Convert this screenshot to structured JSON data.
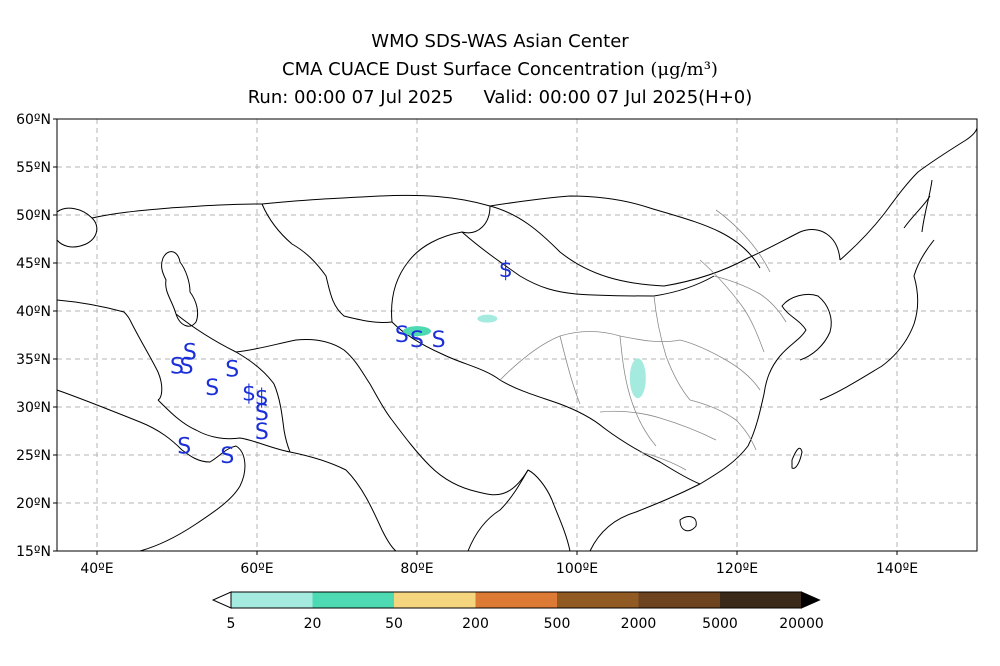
{
  "title": {
    "line1": "WMO SDS-WAS Asian Center",
    "line2_text": "CMA CUACE Dust Surface Concentration",
    "line2_unit": "(μg/m³)",
    "run": "Run: 00:00 07 Jul 2025",
    "valid": "Valid: 00:00 07 Jul 2025(H+0)"
  },
  "map": {
    "lon_range": [
      35,
      150
    ],
    "lat_range": [
      15,
      60
    ],
    "lat_ticks": [
      {
        "value": 60,
        "label": "60ºN"
      },
      {
        "value": 55,
        "label": "55ºN"
      },
      {
        "value": 50,
        "label": "50ºN"
      },
      {
        "value": 45,
        "label": "45ºN"
      },
      {
        "value": 40,
        "label": "40ºN"
      },
      {
        "value": 35,
        "label": "35ºN"
      },
      {
        "value": 30,
        "label": "30ºN"
      },
      {
        "value": 25,
        "label": "25ºN"
      },
      {
        "value": 20,
        "label": "20ºN"
      },
      {
        "value": 15,
        "label": "15ºN"
      }
    ],
    "lon_ticks": [
      {
        "value": 40,
        "label": "40ºE"
      },
      {
        "value": 60,
        "label": "60ºE"
      },
      {
        "value": 80,
        "label": "80ºE"
      },
      {
        "value": 100,
        "label": "100ºE"
      },
      {
        "value": 120,
        "label": "120ºE"
      },
      {
        "value": 140,
        "label": "140ºE"
      }
    ],
    "grid": true,
    "dust_symbols": [
      {
        "glyph": "S",
        "lon": 50.0,
        "lat": 34.3
      },
      {
        "glyph": "S",
        "lon": 51.2,
        "lat": 34.3
      },
      {
        "glyph": "S",
        "lon": 51.6,
        "lat": 35.8
      },
      {
        "glyph": "S",
        "lon": 54.4,
        "lat": 32.1
      },
      {
        "glyph": "S",
        "lon": 56.9,
        "lat": 34.0
      },
      {
        "glyph": "$",
        "lon": 59.0,
        "lat": 31.5
      },
      {
        "glyph": "$",
        "lon": 60.6,
        "lat": 31.1
      },
      {
        "glyph": "S",
        "lon": 60.6,
        "lat": 29.5
      },
      {
        "glyph": "S",
        "lon": 60.6,
        "lat": 27.5
      },
      {
        "glyph": "S",
        "lon": 50.9,
        "lat": 26.0
      },
      {
        "glyph": "S",
        "lon": 56.3,
        "lat": 25.0
      },
      {
        "glyph": "S",
        "lon": 78.1,
        "lat": 37.6
      },
      {
        "glyph": "S",
        "lon": 80.0,
        "lat": 37.1
      },
      {
        "glyph": "S",
        "lon": 82.7,
        "lat": 37.1
      },
      {
        "glyph": "$",
        "lon": 91.1,
        "lat": 44.4
      }
    ],
    "dust_patches": [
      {
        "lon": 80.0,
        "lat": 37.9,
        "level": "20-50"
      },
      {
        "lon": 88.8,
        "lat": 39.2,
        "level": "5-20"
      },
      {
        "lon": 107.6,
        "lat": 33.0,
        "level": "5-20"
      }
    ]
  },
  "colorbar": {
    "labels": [
      "5",
      "20",
      "50",
      "200",
      "500",
      "2000",
      "5000",
      "20000"
    ],
    "colors": [
      "#a5eadf",
      "#4dd9b2",
      "#f5d57e",
      "#dd7a35",
      "#915a22",
      "#6e4320",
      "#3b2a1a"
    ],
    "under_color": "#ffffff",
    "over_color": "#000000"
  }
}
